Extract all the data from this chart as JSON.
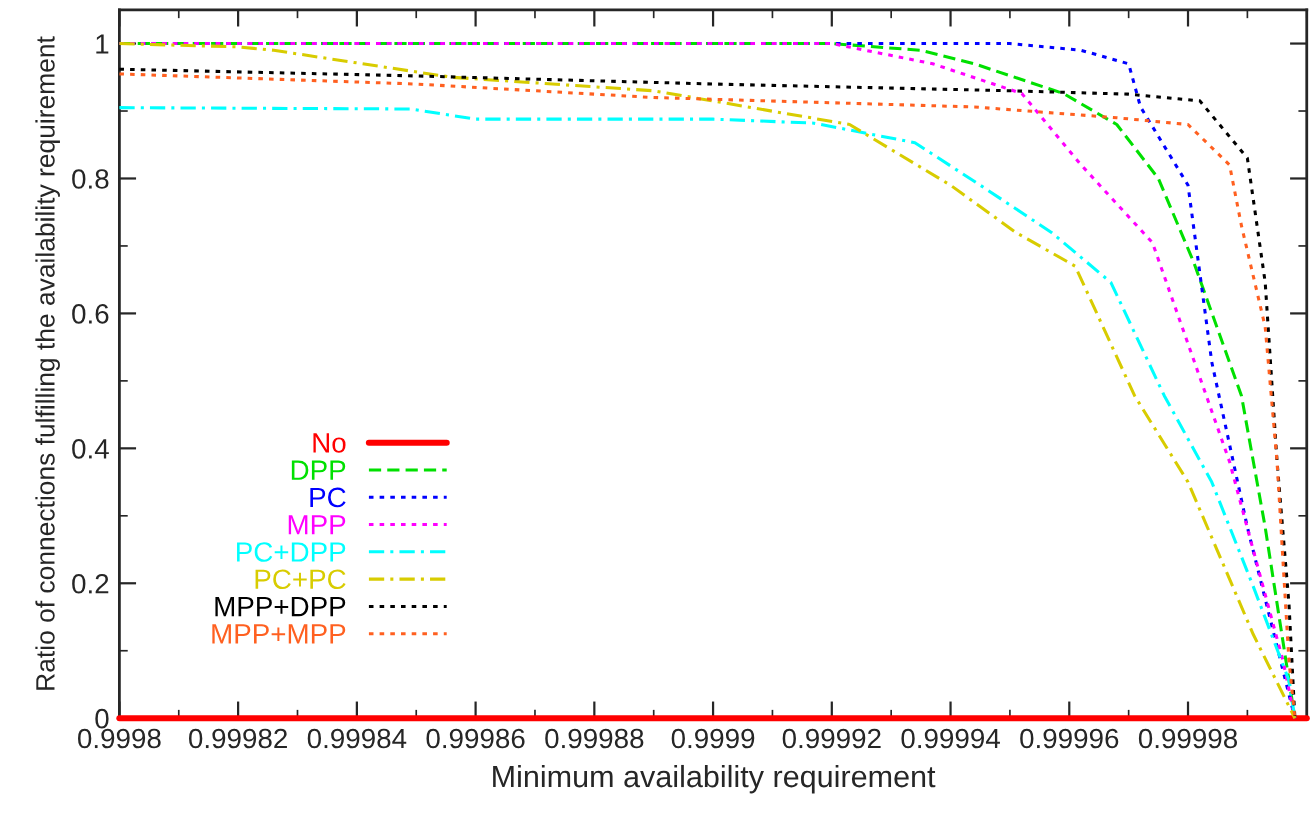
{
  "chart_data": {
    "type": "line",
    "xlabel": "Minimum availability requirement",
    "ylabel": "Ratio of connections fulfilling the availability requirement",
    "xlim": [
      0.9998,
      1.0
    ],
    "xticks": [
      0.9998,
      0.99982,
      0.99984,
      0.99986,
      0.99988,
      0.9999,
      0.99992,
      0.99994,
      0.99996,
      0.99998
    ],
    "ylim": [
      0,
      1.05
    ],
    "yticks": [
      0,
      0.2,
      0.4,
      0.6,
      0.8,
      1
    ],
    "grid": false,
    "legend": "bottom left",
    "series": [
      {
        "name": "No",
        "color": "#ff0000",
        "line_style": "solid",
        "x": [
          0.9998,
          1.0
        ],
        "values": [
          0,
          0
        ]
      },
      {
        "name": "DPP",
        "color": "#00e000",
        "line_style": "dashed",
        "x": [
          0.9998,
          0.99992,
          0.999935,
          0.999944,
          0.999959,
          0.999968,
          0.999975,
          0.999981,
          0.999989,
          0.999993,
          0.999998
        ],
        "values": [
          1,
          1,
          0.99,
          0.97,
          0.926,
          0.88,
          0.8,
          0.675,
          0.478,
          0.283,
          0
        ]
      },
      {
        "name": "PC",
        "color": "#0000ff",
        "line_style": "dotted",
        "x": [
          0.9998,
          0.99995,
          0.999962,
          0.99997,
          0.999972,
          0.99998,
          0.999984,
          0.99999,
          0.999998
        ],
        "values": [
          1,
          1,
          0.99,
          0.97,
          0.906,
          0.79,
          0.528,
          0.283,
          0
        ]
      },
      {
        "name": "MPP",
        "color": "#ff00ff",
        "line_style": "dotted",
        "x": [
          0.9998,
          0.99992,
          0.999937,
          0.999952,
          0.999962,
          0.999974,
          0.999987,
          0.999996,
          0.999998
        ],
        "values": [
          1,
          1,
          0.97,
          0.926,
          0.82,
          0.705,
          0.38,
          0.085,
          0
        ]
      },
      {
        "name": "PC+DPP",
        "color": "#00ffff",
        "line_style": "dashdot",
        "x": [
          0.9998,
          0.999849,
          0.99986,
          0.9999,
          0.999917,
          0.999934,
          0.999945,
          0.999957,
          0.999967,
          0.999976,
          0.999984,
          0.999991,
          0.999997,
          0.999998
        ],
        "values": [
          0.905,
          0.903,
          0.888,
          0.888,
          0.882,
          0.853,
          0.79,
          0.72,
          0.646,
          0.478,
          0.35,
          0.195,
          0.056,
          0
        ]
      },
      {
        "name": "PC+PC",
        "color": "#d8cc00",
        "line_style": "dashdot",
        "x": [
          0.9998,
          0.99982,
          0.999826,
          0.999856,
          0.99989,
          0.999923,
          0.99994,
          0.999951,
          0.999961,
          0.999971,
          0.99998,
          0.999991,
          0.999998
        ],
        "values": [
          1,
          0.995,
          0.99,
          0.95,
          0.93,
          0.88,
          0.79,
          0.72,
          0.67,
          0.478,
          0.35,
          0.124,
          0
        ]
      },
      {
        "name": "MPP+DPP",
        "color": "#000000",
        "line_style": "dotted",
        "x": [
          0.9998,
          0.99985,
          0.9999,
          0.99995,
          0.99997,
          0.999982,
          0.99999,
          0.999993,
          0.999995,
          0.999997,
          0.999998
        ],
        "values": [
          0.962,
          0.952,
          0.94,
          0.93,
          0.925,
          0.915,
          0.83,
          0.646,
          0.38,
          0.17,
          0
        ]
      },
      {
        "name": "MPP+MPP",
        "color": "#ff6020",
        "line_style": "dotted",
        "x": [
          0.9998,
          0.99985,
          0.99989,
          0.999944,
          0.999968,
          0.99998,
          0.999987,
          0.999989,
          0.999993,
          0.999995,
          0.999997,
          0.999998
        ],
        "values": [
          0.955,
          0.94,
          0.92,
          0.906,
          0.89,
          0.88,
          0.82,
          0.73,
          0.58,
          0.38,
          0.085,
          0
        ]
      }
    ]
  }
}
